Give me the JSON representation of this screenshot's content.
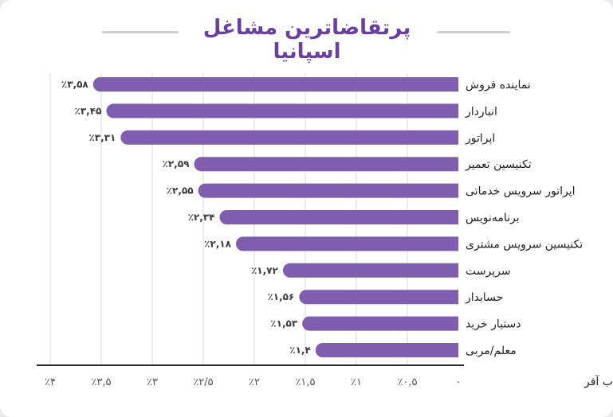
{
  "title": "پرتقاضاترین مشاغل اسپانیا",
  "colors": {
    "bar": "#7f5daf",
    "title": "#6b3fa0",
    "grid": "#d9d9de"
  },
  "chart_data": {
    "type": "bar",
    "orientation": "horizontal",
    "direction": "right-to-left",
    "categories": [
      "نماینده فروش",
      "انباردار",
      "اپراتور",
      "تکنیسین تعمیر",
      "اپراتور سرویس خدماتی",
      "برنامه‌نویس",
      "تکنیسین سرویس مشتری",
      "سرپرست",
      "حسابدار",
      "دستیار خرید",
      "معلم/مربی"
    ],
    "values": [
      3.58,
      3.45,
      3.31,
      2.59,
      2.55,
      2.34,
      2.18,
      1.72,
      1.56,
      1.53,
      1.4
    ],
    "value_labels": [
      "٪۳,۵۸",
      "٪۳,۴۵",
      "٪۳,۳۱",
      "٪۲,۵۹",
      "٪۲,۵۵",
      "٪۲,۳۴",
      "٪۲,۱۸",
      "٪۱,۷۲",
      "٪۱,۵۶",
      "٪۱,۵۳",
      "٪۱,۴"
    ],
    "xlim": [
      0,
      4
    ],
    "xticks": [
      0,
      0.5,
      1,
      1.5,
      2,
      2.5,
      3,
      3.5,
      4
    ],
    "xtick_labels": [
      "۰",
      "٪۰,۵",
      "٪۱",
      "٪۱,۵",
      "٪۲",
      "٪۲/۵",
      "٪۳",
      "٪۳,۵",
      "٪۴"
    ],
    "xlabel": "امکان دریافت جاب آفر",
    "grid": true
  }
}
